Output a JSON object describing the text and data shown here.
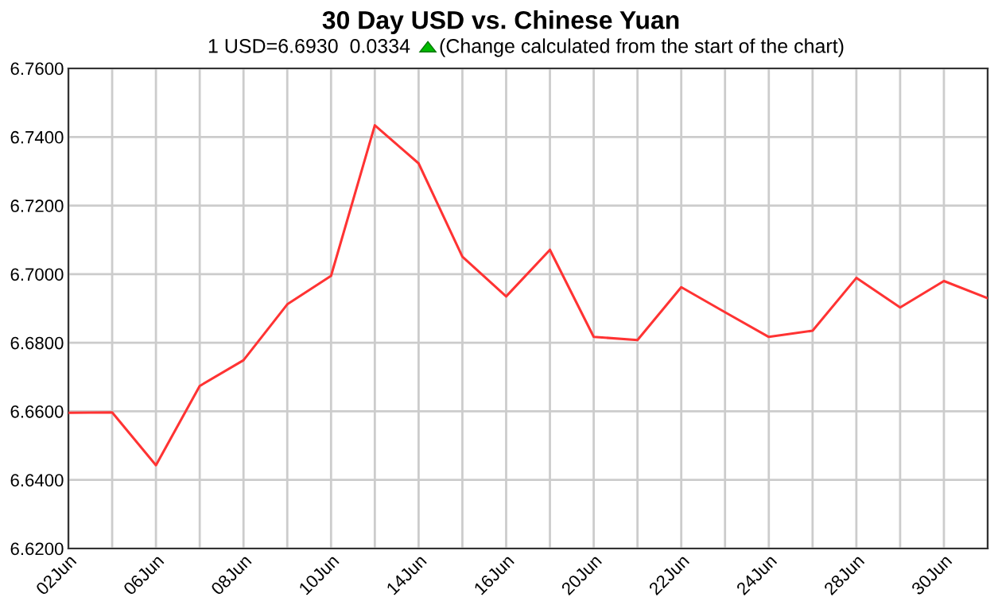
{
  "chart_data": {
    "type": "line",
    "title": "30 Day USD vs. Chinese Yuan",
    "subtitle": "1 USD=6.6930  0.0334",
    "annotations": [
      "(Change calculated from the start of the chart)"
    ],
    "categories": [
      "02Jun",
      null,
      "06Jun",
      null,
      "08Jun",
      null,
      "10Jun",
      null,
      "14Jun",
      null,
      "16Jun",
      null,
      "20Jun",
      null,
      "22Jun",
      null,
      "24Jun",
      null,
      "28Jun",
      null,
      "30Jun",
      null
    ],
    "series": [
      {
        "color": "#ff3333",
        "values": [
          6.6596,
          6.6597,
          6.6443,
          6.6674,
          6.6749,
          6.6912,
          6.6995,
          6.7434,
          6.7323,
          6.7051,
          6.6935,
          6.7071,
          6.6817,
          6.6808,
          6.6962,
          6.6889,
          6.6817,
          6.6835,
          6.6989,
          6.6903,
          6.698,
          6.693
        ]
      }
    ],
    "ylim": [
      6.62,
      6.76
    ],
    "yticks": [
      {
        "value": 6.62,
        "label": "6.6200"
      },
      {
        "value": 6.64,
        "label": "6.6400"
      },
      {
        "value": 6.66,
        "label": "6.6600"
      },
      {
        "value": 6.68,
        "label": "6.6800"
      },
      {
        "value": 6.7,
        "label": "6.7000"
      },
      {
        "value": 6.72,
        "label": "6.7200"
      },
      {
        "value": 6.74,
        "label": "6.7400"
      },
      {
        "value": 6.76,
        "label": "6.7600"
      }
    ],
    "grid": true,
    "marker": "none",
    "line_style": "solid"
  }
}
